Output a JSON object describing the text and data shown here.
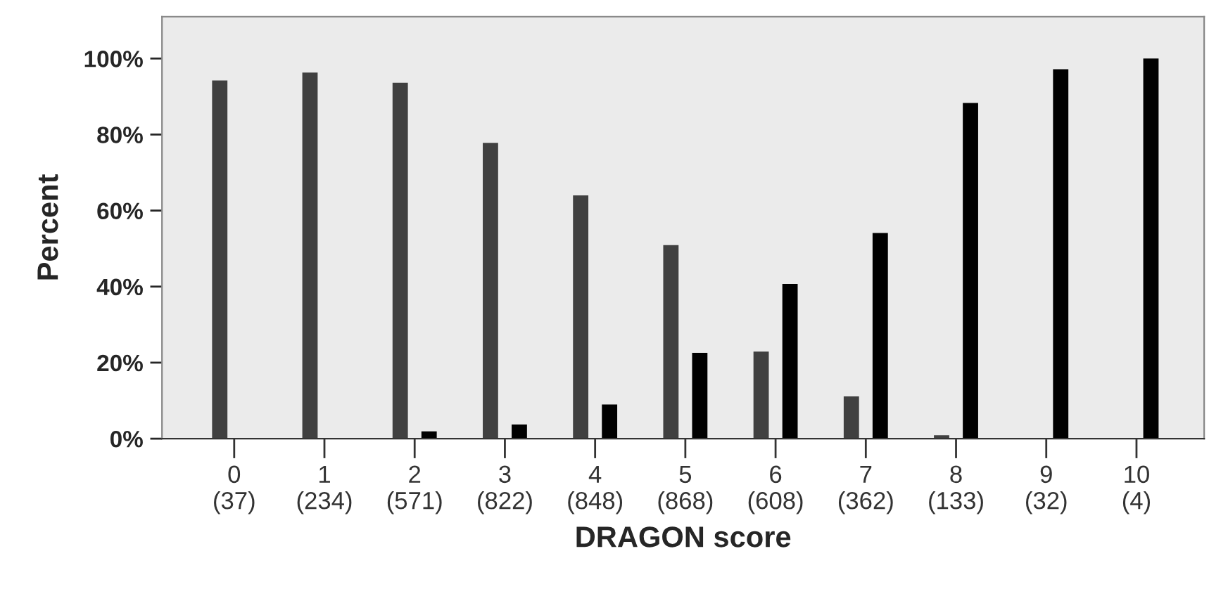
{
  "chart_data": {
    "type": "bar",
    "xlabel": "DRAGON score",
    "ylabel": "Percent",
    "categories": [
      "0\n(37)",
      "1\n(234)",
      "2\n(571)",
      "3\n(822)",
      "4\n(848)",
      "5\n(868)",
      "6\n(608)",
      "7\n(362)",
      "8\n(133)",
      "9\n(32)",
      "10\n(4)"
    ],
    "series": [
      {
        "color": "#404040",
        "values": [
          94.2,
          96.3,
          93.6,
          77.8,
          64,
          50.9,
          22.9,
          11.1,
          0.9,
          null,
          null
        ]
      },
      {
        "color": "#000000",
        "values": [
          null,
          null,
          1.9,
          3.7,
          9.0,
          22.6,
          40.7,
          54.1,
          88.3,
          97.2,
          100
        ]
      }
    ],
    "ylim": [
      0,
      111
    ],
    "yticks": [
      {
        "value": 0,
        "label": "0%"
      },
      {
        "value": 20,
        "label": "20%"
      },
      {
        "value": 40,
        "label": "40%"
      },
      {
        "value": 60,
        "label": "60%"
      },
      {
        "value": 80,
        "label": "80%"
      },
      {
        "value": 100,
        "label": "100%"
      }
    ],
    "grid": false,
    "legend": false
  }
}
